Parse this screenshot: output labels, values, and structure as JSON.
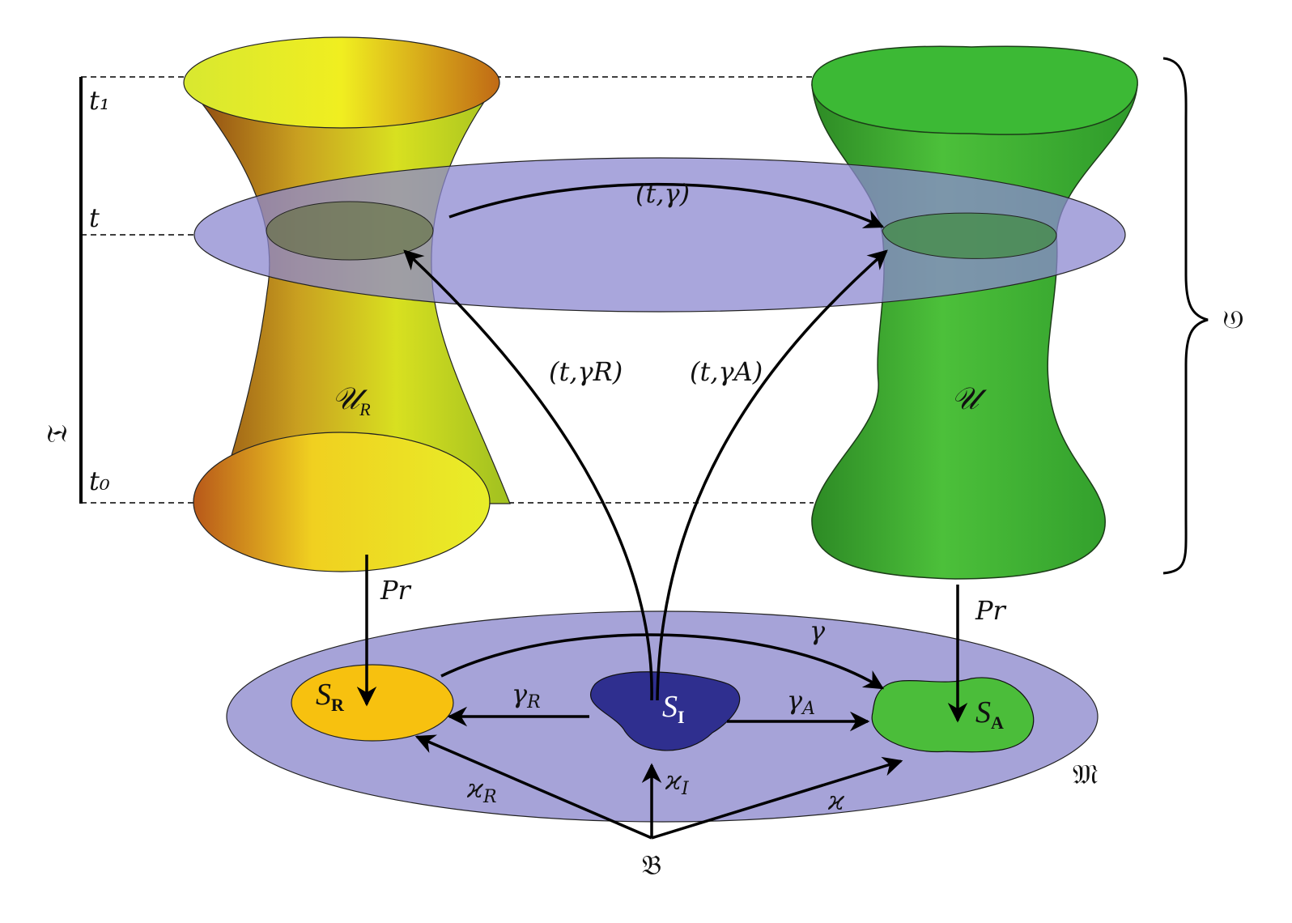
{
  "labels": {
    "t1": "t₁",
    "t": "t",
    "t0": "t₀",
    "time_interval": "𝔗",
    "space": "𝔖",
    "manifold": "𝔐",
    "base": "𝔅",
    "U_R": "𝒰",
    "U_R_sub": "R",
    "U": "𝒰",
    "t_gamma": "(t,γ)",
    "t_gamma_R": "(t,γR)",
    "t_gamma_A": "(t,γA)",
    "pr_left": "Pr",
    "pr_right": "Pr",
    "gamma": "γ",
    "gamma_R": "γ",
    "gamma_R_sub": "R",
    "gamma_A": "γ",
    "gamma_A_sub": "A",
    "kappa_R": "ϰ",
    "kappa_R_sub": "R",
    "kappa_I": "ϰ",
    "kappa_I_sub": "I",
    "kappa": "ϰ",
    "S_R": "S",
    "S_R_sub": "R",
    "S_I": "S",
    "S_I_sub": "I",
    "S_A": "S",
    "S_A_sub": "A"
  },
  "colors": {
    "plane": "#a6a3d8",
    "S_R": "#f7c10f",
    "S_I": "#2f2f8f",
    "S_A": "#4bbd3a",
    "hyperboloid_yellow": "#e8e820",
    "hyperboloid_brown": "#b05a10",
    "green_tube": "#3daa30"
  }
}
